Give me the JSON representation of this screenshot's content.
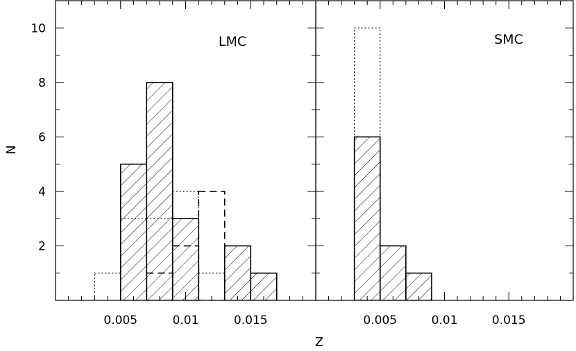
{
  "chart_data": [
    {
      "type": "bar",
      "subtype": "histogram",
      "panel_label": "LMC",
      "xlim": [
        0,
        0.02
      ],
      "ylim": [
        0,
        11
      ],
      "xticks": [
        "0.005",
        "0.01",
        "0.015"
      ],
      "yticks": [
        "2",
        "4",
        "6",
        "8",
        "10"
      ],
      "xlabel": "Z",
      "ylabel": "N",
      "series": [
        {
          "style": "hatched",
          "bins": [
            {
              "from": 0.005,
              "to": 0.007,
              "value": 5
            },
            {
              "from": 0.007,
              "to": 0.009,
              "value": 8
            },
            {
              "from": 0.009,
              "to": 0.011,
              "value": 3
            },
            {
              "from": 0.011,
              "to": 0.013,
              "value": 0
            },
            {
              "from": 0.013,
              "to": 0.015,
              "value": 2
            },
            {
              "from": 0.015,
              "to": 0.017,
              "value": 1
            }
          ]
        },
        {
          "style": "dotted",
          "bins": [
            {
              "from": 0.003,
              "to": 0.005,
              "value": 1
            },
            {
              "from": 0.005,
              "to": 0.007,
              "value": 3
            },
            {
              "from": 0.007,
              "to": 0.009,
              "value": 3
            },
            {
              "from": 0.009,
              "to": 0.011,
              "value": 4
            },
            {
              "from": 0.011,
              "to": 0.013,
              "value": 1
            }
          ]
        },
        {
          "style": "dashed",
          "bins": [
            {
              "from": 0.007,
              "to": 0.009,
              "value": 1
            },
            {
              "from": 0.009,
              "to": 0.011,
              "value": 2
            },
            {
              "from": 0.011,
              "to": 0.013,
              "value": 4
            }
          ]
        }
      ]
    },
    {
      "type": "bar",
      "subtype": "histogram",
      "panel_label": "SMC",
      "xlim": [
        0,
        0.02
      ],
      "ylim": [
        0,
        11
      ],
      "xticks": [
        "0.005",
        "0.01",
        "0.015"
      ],
      "yticks": [],
      "xlabel": "Z",
      "ylabel": "",
      "series": [
        {
          "style": "hatched",
          "bins": [
            {
              "from": 0.003,
              "to": 0.005,
              "value": 6
            },
            {
              "from": 0.005,
              "to": 0.007,
              "value": 2
            },
            {
              "from": 0.007,
              "to": 0.009,
              "value": 1
            }
          ]
        },
        {
          "style": "dotted",
          "bins": [
            {
              "from": 0.003,
              "to": 0.005,
              "value": 10
            }
          ]
        }
      ]
    }
  ]
}
